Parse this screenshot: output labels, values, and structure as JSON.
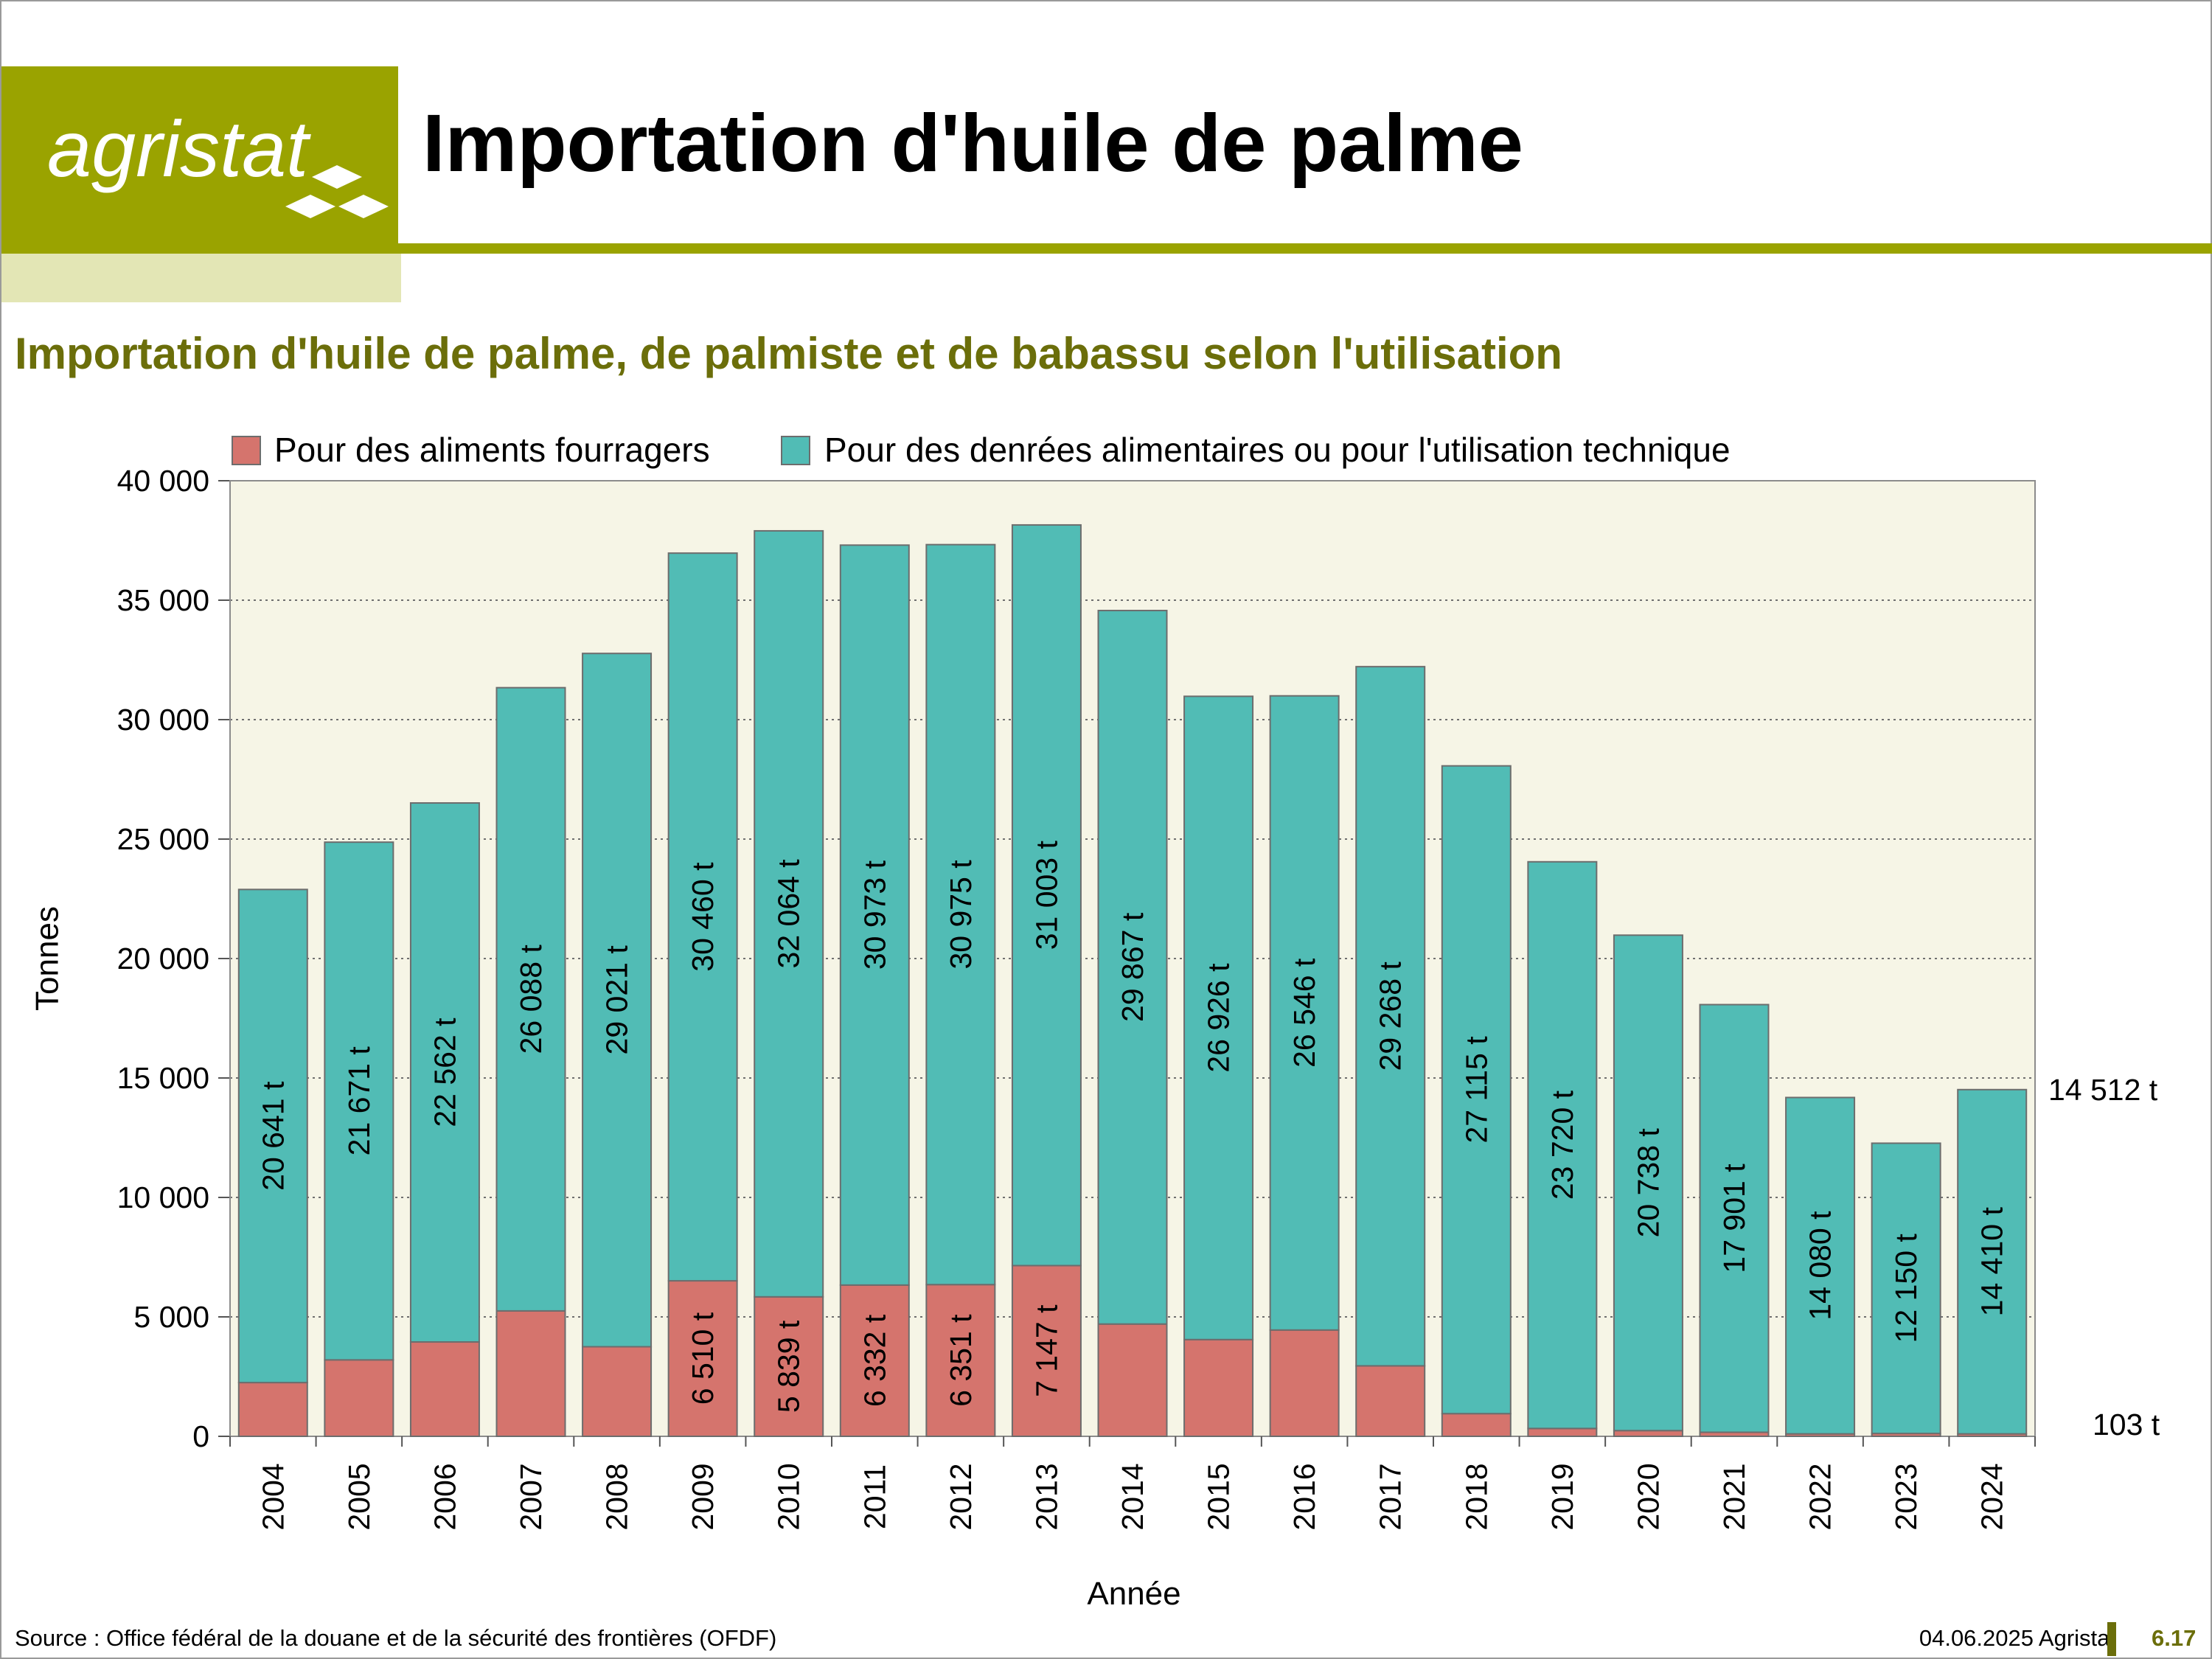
{
  "header": {
    "brand": "agristat",
    "title": "Importation d'huile de palme"
  },
  "colors": {
    "brand_green": "#9aa300",
    "brand_light": "#e3e6b5",
    "subtitle": "#6b6e0a",
    "feed": "#d5746d",
    "food": "#51bcb5",
    "plot_bg": "#f6f5e6"
  },
  "chart_data": {
    "type": "bar",
    "stacked": true,
    "title": "Importation d'huile de palme, de palmiste et de babassu selon l'utilisation",
    "xlabel": "Année",
    "ylabel": "Tonnes",
    "ylim": [
      0,
      40000
    ],
    "yticks": [
      {
        "value": 0,
        "label": "0"
      },
      {
        "value": 5000,
        "label": "5 000"
      },
      {
        "value": 10000,
        "label": "10 000"
      },
      {
        "value": 15000,
        "label": "15 000"
      },
      {
        "value": 20000,
        "label": "20 000"
      },
      {
        "value": 25000,
        "label": "25 000"
      },
      {
        "value": 30000,
        "label": "30 000"
      },
      {
        "value": 35000,
        "label": "35 000"
      },
      {
        "value": 40000,
        "label": "40 000"
      }
    ],
    "grid": true,
    "legend_position": "top",
    "categories": [
      "2004",
      "2005",
      "2006",
      "2007",
      "2008",
      "2009",
      "2010",
      "2011",
      "2012",
      "2013",
      "2014",
      "2015",
      "2016",
      "2017",
      "2018",
      "2019",
      "2020",
      "2021",
      "2022",
      "2023",
      "2024"
    ],
    "series": [
      {
        "name": "Pour des aliments fourragers",
        "color": "#d5746d",
        "values": [
          2250,
          3200,
          3950,
          5250,
          3750,
          6510,
          5839,
          6332,
          6351,
          7147,
          4700,
          4050,
          4450,
          2950,
          950,
          330,
          240,
          170,
          103,
          120,
          103
        ],
        "labels": [
          "",
          "",
          "",
          "",
          "",
          "6 510 t",
          "5 839 t",
          "6 332 t",
          "6 351 t",
          "7 147 t",
          "",
          "",
          "",
          "",
          "",
          "",
          "",
          "",
          "",
          "",
          ""
        ]
      },
      {
        "name": "Pour des denrées alimentaires ou pour l'utilisation technique",
        "color": "#51bcb5",
        "values": [
          20641,
          21671,
          22562,
          26088,
          29021,
          30460,
          32064,
          30973,
          30975,
          31003,
          29867,
          26926,
          26546,
          29268,
          27115,
          23720,
          20738,
          17901,
          14080,
          12150,
          14410
        ],
        "labels": [
          "20 641 t",
          "21 671 t",
          "22 562 t",
          "26 088 t",
          "29 021 t",
          "30 460 t",
          "32 064 t",
          "30 973 t",
          "30 975 t",
          "31 003 t",
          "29 867 t",
          "26 926 t",
          "26 546 t",
          "29 268 t",
          "27 115 t",
          "23 720 t",
          "20 738 t",
          "17 901 t",
          "14 080 t",
          "12 150 t",
          "14 410 t"
        ]
      }
    ],
    "annotations": [
      {
        "text": "14 512 t",
        "refers_to": "total 2024"
      },
      {
        "text": "103 t",
        "refers_to": "Pour des aliments fourragers 2024"
      }
    ]
  },
  "footer": {
    "source": "Source : Office fédéral de la douane et de la sécurité des frontières (OFDF)",
    "date_brand": "04.06.2025 Agristat",
    "page_number": "6.17"
  }
}
